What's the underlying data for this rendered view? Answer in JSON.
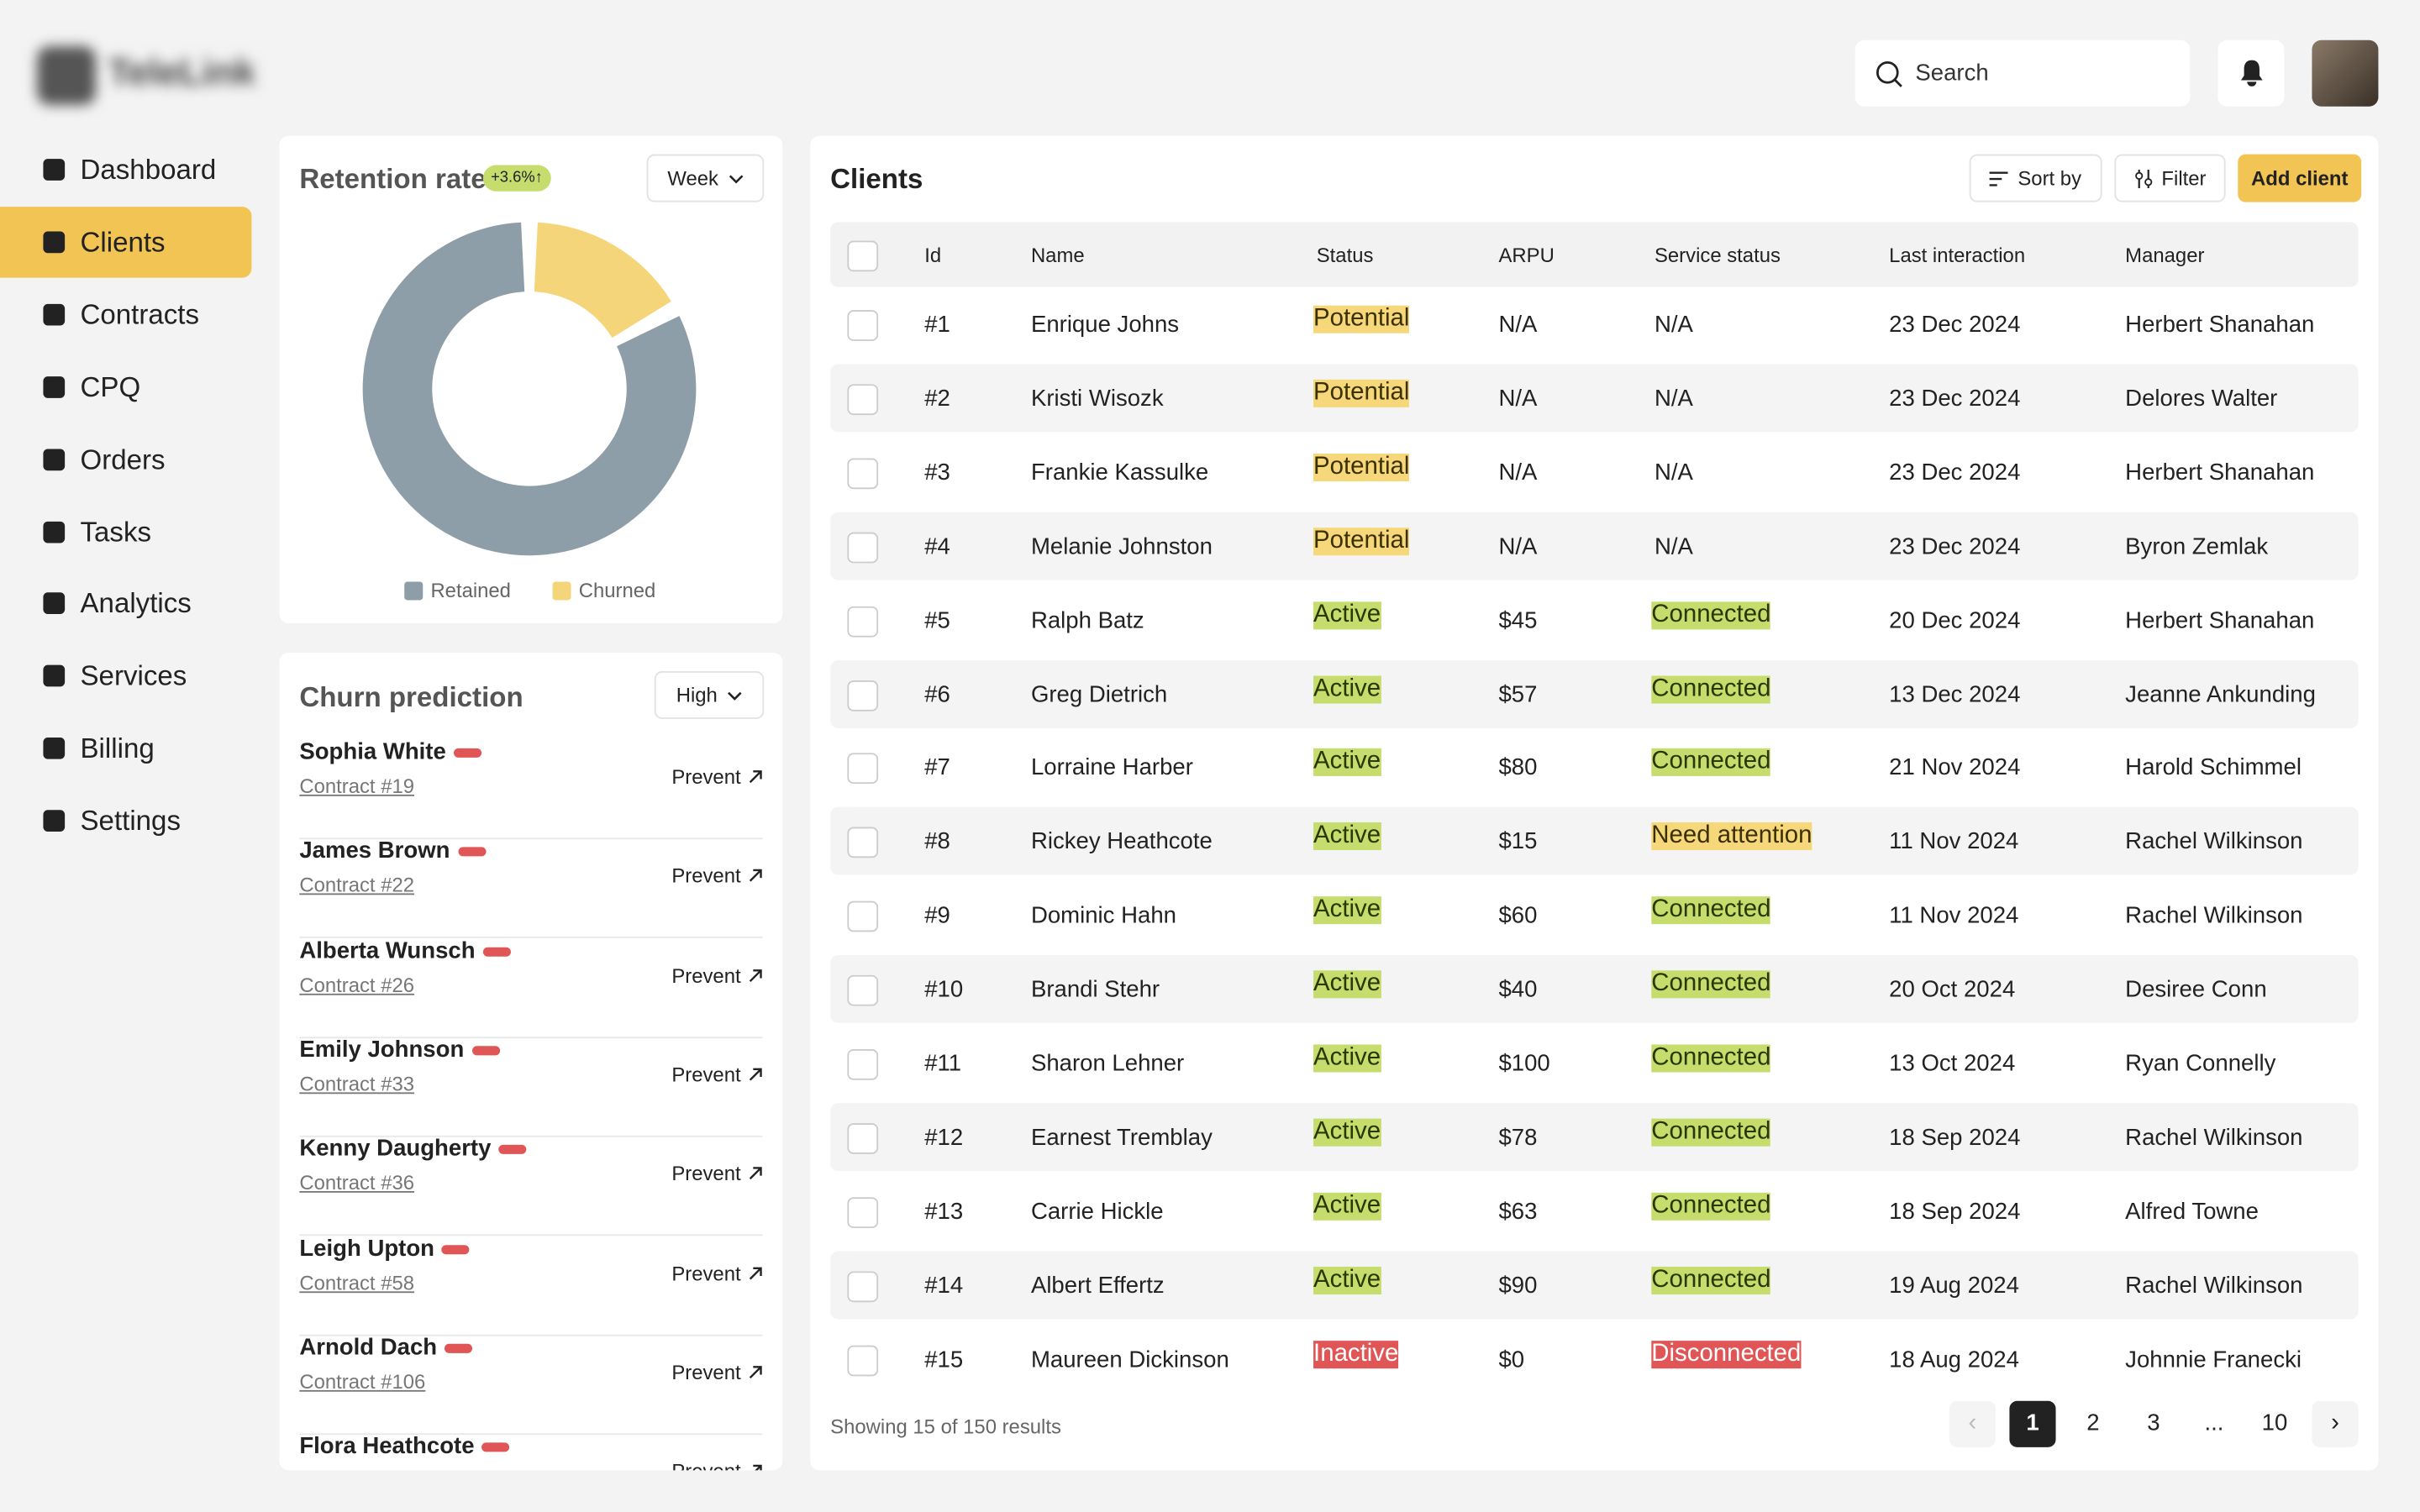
{
  "logo": "TeleLink",
  "nav": [
    "Dashboard",
    "Clients",
    "Contracts",
    "CPQ",
    "Orders",
    "Tasks",
    "Analytics",
    "Services",
    "Billing",
    "Settings"
  ],
  "active_nav": 1,
  "search": "Search",
  "retention": {
    "title": "Retention rate",
    "badge": "+3.6%",
    "period": "Week",
    "segments": [
      {
        "name": "Retained",
        "color": "#8d9ea8",
        "value": 83
      },
      {
        "name": "Churned",
        "color": "#f5d57a",
        "value": 17
      }
    ]
  },
  "churn": {
    "title": "Churn prediction",
    "level": "High",
    "items": [
      {
        "name": "Sophia White",
        "contract": "Contract #19",
        "action": "Prevent"
      },
      {
        "name": "James Brown",
        "contract": "Contract #22",
        "action": "Prevent"
      },
      {
        "name": "Alberta Wunsch",
        "contract": "Contract #26",
        "action": "Prevent"
      },
      {
        "name": "Emily Johnson",
        "contract": "Contract #33",
        "action": "Prevent"
      },
      {
        "name": "Kenny Daugherty",
        "contract": "Contract #36",
        "action": "Prevent"
      },
      {
        "name": "Leigh Upton",
        "contract": "Contract #58",
        "action": "Prevent"
      },
      {
        "name": "Arnold Dach",
        "contract": "Contract #106",
        "action": "Prevent"
      },
      {
        "name": "Flora Heathcote",
        "contract": "",
        "action": "Prevent"
      }
    ]
  },
  "clients": {
    "title": "Clients",
    "sort": "Sort by",
    "filter": "Filter",
    "add": "Add client",
    "columns": [
      "Id",
      "Name",
      "Status",
      "ARPU",
      "Service status",
      "Last interaction",
      "Manager"
    ],
    "badges": {
      "Potential": [
        "#f6d77a",
        "#3a3000"
      ],
      "Active": [
        "#c6dc6c",
        "#2b3600"
      ],
      "Connected": [
        "#c6dc6c",
        "#2b3600"
      ],
      "Need attention": [
        "#f6d77a",
        "#3a3000"
      ],
      "Inactive": [
        "#e05555",
        "#ffffff"
      ],
      "Disconnected": [
        "#e05555",
        "#ffffff"
      ]
    },
    "rows": [
      [
        "#1",
        "Enrique Johns",
        "Potential",
        "N/A",
        "N/A",
        "23 Dec 2024",
        "Herbert Shanahan"
      ],
      [
        "#2",
        "Kristi Wisozk",
        "Potential",
        "N/A",
        "N/A",
        "23 Dec 2024",
        "Delores Walter"
      ],
      [
        "#3",
        "Frankie Kassulke",
        "Potential",
        "N/A",
        "N/A",
        "23 Dec 2024",
        "Herbert Shanahan"
      ],
      [
        "#4",
        "Melanie Johnston",
        "Potential",
        "N/A",
        "N/A",
        "23 Dec 2024",
        "Byron Zemlak"
      ],
      [
        "#5",
        "Ralph Batz",
        "Active",
        "$45",
        "Connected",
        "20 Dec 2024",
        "Herbert Shanahan"
      ],
      [
        "#6",
        "Greg Dietrich",
        "Active",
        "$57",
        "Connected",
        "13 Dec 2024",
        "Jeanne Ankunding"
      ],
      [
        "#7",
        "Lorraine Harber",
        "Active",
        "$80",
        "Connected",
        "21 Nov 2024",
        "Harold Schimmel"
      ],
      [
        "#8",
        "Rickey Heathcote",
        "Active",
        "$15",
        "Need attention",
        "11 Nov 2024",
        "Rachel Wilkinson"
      ],
      [
        "#9",
        "Dominic Hahn",
        "Active",
        "$60",
        "Connected",
        "11 Nov 2024",
        "Rachel Wilkinson"
      ],
      [
        "#10",
        "Brandi Stehr",
        "Active",
        "$40",
        "Connected",
        "20 Oct 2024",
        "Desiree Conn"
      ],
      [
        "#11",
        "Sharon Lehner",
        "Active",
        "$100",
        "Connected",
        "13 Oct 2024",
        "Ryan Connelly"
      ],
      [
        "#12",
        "Earnest Tremblay",
        "Active",
        "$78",
        "Connected",
        "18 Sep 2024",
        "Rachel Wilkinson"
      ],
      [
        "#13",
        "Carrie Hickle",
        "Active",
        "$63",
        "Connected",
        "18 Sep 2024",
        "Alfred Towne"
      ],
      [
        "#14",
        "Albert Effertz",
        "Active",
        "$90",
        "Connected",
        "19 Aug 2024",
        "Rachel Wilkinson"
      ],
      [
        "#15",
        "Maureen Dickinson",
        "Inactive",
        "$0",
        "Disconnected",
        "18 Aug 2024",
        "Johnnie Franecki"
      ]
    ],
    "showing": "Showing 15 of 150 results",
    "pages": [
      "1",
      "2",
      "3",
      "...",
      "10"
    ]
  }
}
